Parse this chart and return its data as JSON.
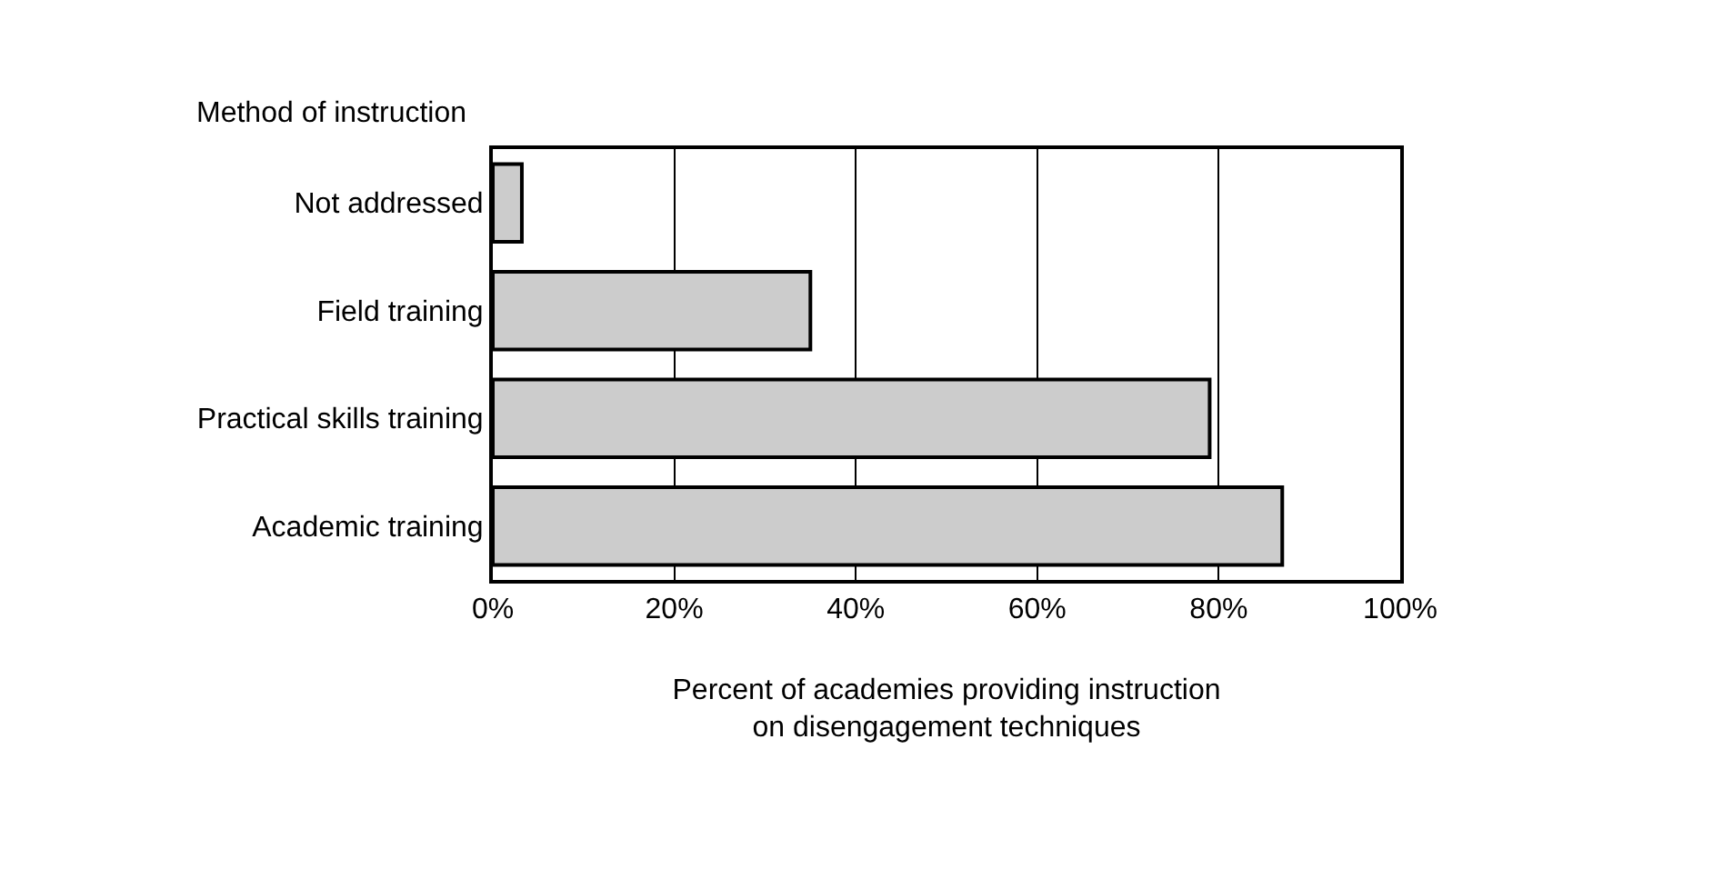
{
  "chart_data": {
    "type": "bar",
    "orientation": "horizontal",
    "ylabel": "Method of instruction",
    "xlabel": "Percent of academies providing instruction\non disengagement techniques",
    "categories": [
      "Not addressed",
      "Field training",
      "Practical skills training",
      "Academic training"
    ],
    "values": [
      3.2,
      35,
      79,
      87
    ],
    "color": "#cccccc",
    "xlim": [
      0,
      100
    ],
    "xticks": [
      {
        "value": 0,
        "label": "0%"
      },
      {
        "value": 20,
        "label": "20%"
      },
      {
        "value": 40,
        "label": "40%"
      },
      {
        "value": 60,
        "label": "60%"
      },
      {
        "value": 80,
        "label": "80%"
      },
      {
        "value": 100,
        "label": "100%"
      }
    ],
    "grid": "x"
  }
}
